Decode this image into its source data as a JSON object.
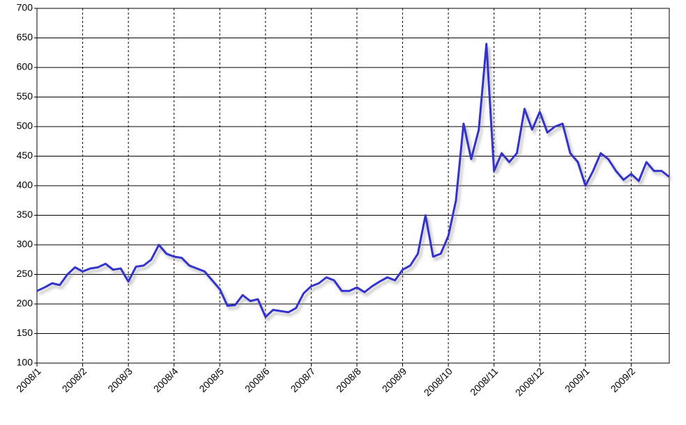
{
  "chart_data": {
    "type": "line",
    "categories": [
      "2008/1",
      null,
      null,
      null,
      null,
      null,
      "2008/2",
      null,
      null,
      null,
      null,
      null,
      "2008/3",
      null,
      null,
      null,
      null,
      null,
      "2008/4",
      null,
      null,
      null,
      null,
      null,
      "2008/5",
      null,
      null,
      null,
      null,
      null,
      "2008/6",
      null,
      null,
      null,
      null,
      null,
      "2008/7",
      null,
      null,
      null,
      null,
      null,
      "2008/8",
      null,
      null,
      null,
      null,
      null,
      "2008/9",
      null,
      null,
      null,
      null,
      null,
      "2008/10",
      null,
      null,
      null,
      null,
      null,
      "2008/11",
      null,
      null,
      null,
      null,
      null,
      "2008/12",
      null,
      null,
      null,
      null,
      null,
      "2009/1",
      null,
      null,
      null,
      null,
      null,
      "2009/2",
      null,
      null,
      null,
      null,
      null
    ],
    "series": [
      {
        "color": "#3333cc",
        "values": [
          222,
          228,
          235,
          232,
          250,
          262,
          255,
          260,
          262,
          268,
          258,
          260,
          238,
          263,
          265,
          275,
          300,
          285,
          280,
          278,
          265,
          260,
          255,
          240,
          225,
          197,
          198,
          215,
          205,
          208,
          178,
          190,
          188,
          186,
          193,
          218,
          230,
          235,
          245,
          240,
          222,
          222,
          228,
          220,
          230,
          238,
          245,
          240,
          258,
          265,
          285,
          350,
          280,
          285,
          315,
          375,
          505,
          445,
          495,
          640,
          425,
          455,
          440,
          455,
          530,
          495,
          525,
          490,
          500,
          505,
          455,
          440,
          400,
          425,
          455,
          445,
          425,
          410,
          420,
          408,
          440,
          425,
          425,
          415
        ]
      }
    ],
    "ylim": [
      100,
      700
    ],
    "yticks": [
      100,
      150,
      200,
      250,
      300,
      350,
      400,
      450,
      500,
      550,
      600,
      650,
      700
    ],
    "grid": true
  }
}
